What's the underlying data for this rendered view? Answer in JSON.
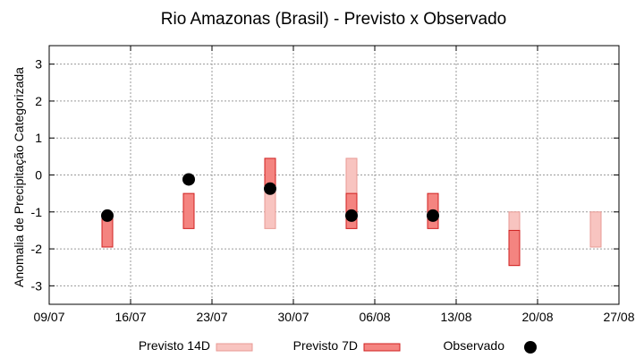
{
  "chart_data": {
    "type": "range-bar",
    "title": "Rio Amazonas (Brasil) - Previsto x Observado",
    "xlabel": "",
    "ylabel": "Anomalia de Precipitação Categorizada",
    "xlim": [
      "2023-07-09",
      "2023-08-27"
    ],
    "ylim": [
      -3.5,
      3.5
    ],
    "x_tick_labels": [
      "09/07",
      "16/07",
      "23/07",
      "30/07",
      "06/08",
      "13/08",
      "20/08",
      "27/08"
    ],
    "y_ticks": [
      -3,
      -2,
      -1,
      0,
      1,
      2,
      3
    ],
    "grid": true,
    "legend_position": "bottom",
    "series": [
      {
        "name": "Previsto 14D",
        "kind": "range",
        "fill": "#f8c4c0",
        "stroke": "#e89a94",
        "points": [
          {
            "x": "2023-07-28",
            "low": -1.45,
            "high": 0.45
          },
          {
            "x": "2023-08-04",
            "low": -1.45,
            "high": 0.45
          },
          {
            "x": "2023-08-18",
            "low": -2.45,
            "high": -1.0
          },
          {
            "x": "2023-08-25",
            "low": -1.95,
            "high": -1.0
          }
        ]
      },
      {
        "name": "Previsto 7D",
        "kind": "range",
        "fill": "#f48480",
        "stroke": "#d02020",
        "points": [
          {
            "x": "2023-07-14",
            "low": -1.95,
            "high": -1.1
          },
          {
            "x": "2023-07-21",
            "low": -1.45,
            "high": -0.5
          },
          {
            "x": "2023-07-28",
            "low": -0.35,
            "high": 0.45
          },
          {
            "x": "2023-08-04",
            "low": -1.45,
            "high": -0.5
          },
          {
            "x": "2023-08-11",
            "low": -1.45,
            "high": -0.5
          },
          {
            "x": "2023-08-18",
            "low": -2.45,
            "high": -1.5
          }
        ]
      },
      {
        "name": "Observado",
        "kind": "point",
        "color": "#000000",
        "points": [
          {
            "x": "2023-07-14",
            "y": -1.1
          },
          {
            "x": "2023-07-21",
            "y": -0.12
          },
          {
            "x": "2023-07-28",
            "y": -0.37
          },
          {
            "x": "2023-08-04",
            "y": -1.1
          },
          {
            "x": "2023-08-11",
            "y": -1.1
          }
        ]
      }
    ]
  }
}
